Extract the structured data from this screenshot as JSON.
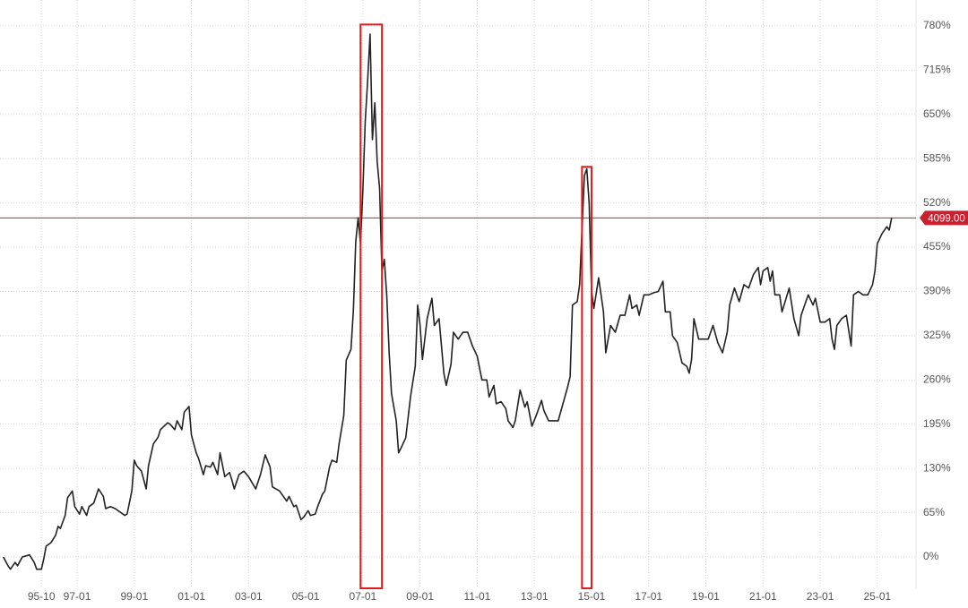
{
  "chart_data": {
    "type": "line",
    "color": "#222222",
    "grid": true,
    "x": [
      "94-06",
      "94-08",
      "94-09",
      "94-11",
      "94-12",
      "95-02",
      "95-05",
      "95-07",
      "95-08",
      "95-10",
      "95-11",
      "95-12",
      "96-02",
      "96-04",
      "96-05",
      "96-06",
      "96-08",
      "96-09",
      "96-11",
      "96-12",
      "97-02",
      "97-03",
      "97-05",
      "97-06",
      "97-08",
      "97-10",
      "97-12",
      "98-01",
      "98-03",
      "98-05",
      "98-07",
      "98-09",
      "98-10",
      "98-12",
      "99-01",
      "99-02",
      "99-04",
      "99-06",
      "99-07",
      "99-09",
      "99-11",
      "99-12",
      "00-03",
      "00-04",
      "00-06",
      "00-07",
      "00-09",
      "00-10",
      "00-12",
      "01-01",
      "01-03",
      "01-04",
      "01-06",
      "01-07",
      "01-09",
      "01-10",
      "01-12",
      "02-01",
      "02-03",
      "02-05",
      "02-06",
      "02-07",
      "02-09",
      "02-11",
      "03-01",
      "03-04",
      "03-06",
      "03-08",
      "03-10",
      "03-11",
      "04-02",
      "04-03",
      "04-05",
      "04-06",
      "04-08",
      "04-09",
      "04-11",
      "04-12",
      "05-02",
      "05-03",
      "05-05",
      "05-06",
      "05-08",
      "05-09",
      "05-11",
      "05-12",
      "06-02",
      "06-03",
      "06-05",
      "06-06",
      "06-08",
      "06-09",
      "06-10",
      "06-11",
      "06-12",
      "07-01",
      "07-02",
      "07-03",
      "07-04",
      "07-05",
      "07-06",
      "07-07",
      "07-08",
      "07-09",
      "07-10",
      "07-11",
      "07-12",
      "08-01",
      "08-03",
      "08-04",
      "08-05",
      "08-07",
      "08-09",
      "08-11",
      "08-12",
      "09-01",
      "09-02",
      "09-04",
      "09-06",
      "09-07",
      "09-09",
      "09-11",
      "09-12",
      "10-02",
      "10-03",
      "10-05",
      "10-07",
      "10-09",
      "10-11",
      "11-01",
      "11-03",
      "11-05",
      "11-06",
      "11-08",
      "11-09",
      "11-11",
      "12-01",
      "12-02",
      "12-04",
      "12-05",
      "12-07",
      "12-09",
      "12-10",
      "12-12",
      "13-02",
      "13-04",
      "13-05",
      "13-07",
      "13-09",
      "13-11",
      "14-01",
      "14-03",
      "14-04",
      "14-05",
      "14-07",
      "14-08",
      "14-09",
      "14-10",
      "14-11",
      "14-12",
      "15-01",
      "15-02",
      "15-04",
      "15-06",
      "15-07",
      "15-09",
      "15-11",
      "16-01",
      "16-03",
      "16-05",
      "16-06",
      "16-08",
      "16-09",
      "16-11",
      "17-01",
      "17-03",
      "17-05",
      "17-07",
      "17-08",
      "17-10",
      "17-11",
      "18-01",
      "18-03",
      "18-05",
      "18-06",
      "18-07",
      "18-08",
      "18-10",
      "18-12",
      "19-02",
      "19-04",
      "19-06",
      "19-08",
      "19-10",
      "19-11",
      "20-01",
      "20-03",
      "20-05",
      "20-07",
      "20-09",
      "20-11",
      "20-12",
      "21-01",
      "21-03",
      "21-04",
      "21-05",
      "21-06",
      "21-08",
      "21-09",
      "21-12",
      "22-02",
      "22-04",
      "22-05",
      "22-07",
      "22-08",
      "22-10",
      "22-11",
      "23-01",
      "23-03",
      "23-05",
      "23-06",
      "23-07",
      "23-08",
      "23-10",
      "23-12",
      "24-02",
      "24-03",
      "24-05",
      "24-07",
      "24-09",
      "24-11",
      "24-12",
      "25-01",
      "25-03",
      "25-05",
      "25-06",
      "25-07"
    ],
    "values": [
      0,
      -13,
      -18,
      -8,
      -13,
      0,
      3,
      -8,
      -18,
      -18,
      -3,
      16,
      21,
      32,
      45,
      42,
      61,
      87,
      97,
      74,
      63,
      74,
      61,
      74,
      79,
      100,
      89,
      71,
      74,
      71,
      66,
      61,
      63,
      97,
      142,
      134,
      126,
      100,
      134,
      166,
      176,
      187,
      197,
      195,
      187,
      200,
      187,
      213,
      221,
      179,
      153,
      145,
      121,
      134,
      132,
      139,
      121,
      153,
      118,
      124,
      113,
      100,
      121,
      126,
      118,
      100,
      121,
      150,
      132,
      103,
      97,
      92,
      82,
      89,
      74,
      76,
      55,
      58,
      68,
      61,
      63,
      74,
      92,
      97,
      132,
      142,
      139,
      166,
      208,
      289,
      305,
      363,
      463,
      498,
      460,
      540,
      640,
      700,
      768,
      613,
      667,
      581,
      542,
      420,
      437,
      384,
      302,
      240,
      200,
      153,
      160,
      175,
      235,
      280,
      370,
      340,
      290,
      350,
      380,
      340,
      350,
      270,
      252,
      283,
      330,
      320,
      330,
      330,
      310,
      295,
      260,
      260,
      235,
      252,
      225,
      228,
      218,
      200,
      190,
      200,
      245,
      220,
      228,
      192,
      210,
      230,
      215,
      200,
      200,
      200,
      225,
      250,
      265,
      370,
      375,
      400,
      480,
      560,
      570,
      520,
      390,
      365,
      410,
      360,
      300,
      340,
      330,
      355,
      355,
      385,
      365,
      370,
      355,
      385,
      385,
      388,
      390,
      405,
      360,
      360,
      325,
      315,
      285,
      280,
      270,
      290,
      350,
      320,
      320,
      320,
      340,
      315,
      300,
      330,
      370,
      395,
      375,
      400,
      395,
      415,
      425,
      400,
      420,
      425,
      405,
      420,
      385,
      385,
      360,
      395,
      350,
      325,
      355,
      375,
      385,
      370,
      380,
      345,
      345,
      350,
      320,
      305,
      340,
      350,
      355,
      310,
      385,
      390,
      385,
      385,
      400,
      420,
      460,
      475,
      485,
      480,
      498
    ],
    "xlim": [
      "94-05",
      "26-06"
    ],
    "xticks": [
      "95-10",
      "97-01",
      "99-01",
      "01-01",
      "03-01",
      "05-01",
      "07-01",
      "09-01",
      "11-01",
      "13-01",
      "15-01",
      "17-01",
      "19-01",
      "21-01",
      "23-01",
      "25-01"
    ],
    "ylim": [
      -46,
      818
    ],
    "yticks": [
      {
        "value": 0,
        "label": "0%"
      },
      {
        "value": 65,
        "label": "65%"
      },
      {
        "value": 130,
        "label": "130%"
      },
      {
        "value": 195,
        "label": "195%"
      },
      {
        "value": 260,
        "label": "260%"
      },
      {
        "value": 325,
        "label": "325%"
      },
      {
        "value": 390,
        "label": "390%"
      },
      {
        "value": 455,
        "label": "455%"
      },
      {
        "value": 520,
        "label": "520%"
      },
      {
        "value": 585,
        "label": "585%"
      },
      {
        "value": 650,
        "label": "650%"
      },
      {
        "value": 715,
        "label": "715%"
      },
      {
        "value": 780,
        "label": "780%"
      }
    ],
    "current_level": 498,
    "current_price_label": "4099.00",
    "current_color": "#c8202f",
    "highlights": [
      {
        "x": [
          "06-12",
          "07-09"
        ],
        "y": [
          -46,
          782
        ]
      },
      {
        "x": [
          "14-09",
          "15-01"
        ],
        "y": [
          -46,
          573
        ]
      }
    ],
    "highlight_color": "#e01b1b"
  }
}
